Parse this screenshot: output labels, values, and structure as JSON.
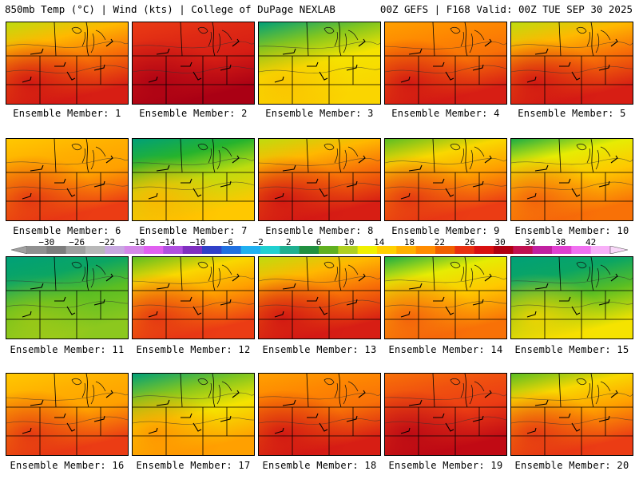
{
  "header": {
    "left": "850mb Temp (°C) | Wind (kts) | College of DuPage NEXLAB",
    "right": "00Z GEFS | F168 Valid: 00Z TUE SEP 30 2025"
  },
  "member_label_prefix": "Ensemble Member: ",
  "members": [
    {
      "number": "1",
      "caption": "Ensemble Member: 1",
      "dominant_temp_c": 22,
      "cool_north": true,
      "hot_southwest": true
    },
    {
      "number": "2",
      "caption": "Ensemble Member: 2",
      "dominant_temp_c": 26,
      "cool_north": false,
      "hot_southwest": true
    },
    {
      "number": "3",
      "caption": "Ensemble Member: 3",
      "dominant_temp_c": 16,
      "cool_north": true,
      "hot_southwest": false
    },
    {
      "number": "4",
      "caption": "Ensemble Member: 4",
      "dominant_temp_c": 22,
      "cool_north": false,
      "hot_southwest": true
    },
    {
      "number": "5",
      "caption": "Ensemble Member: 5",
      "dominant_temp_c": 22,
      "cool_north": true,
      "hot_southwest": true
    },
    {
      "number": "6",
      "caption": "Ensemble Member: 6",
      "dominant_temp_c": 20,
      "cool_north": false,
      "hot_southwest": true
    },
    {
      "number": "7",
      "caption": "Ensemble Member: 7",
      "dominant_temp_c": 14,
      "cool_north": true,
      "hot_southwest": true
    },
    {
      "number": "8",
      "caption": "Ensemble Member: 8",
      "dominant_temp_c": 22,
      "cool_north": true,
      "hot_southwest": true
    },
    {
      "number": "9",
      "caption": "Ensemble Member: 9",
      "dominant_temp_c": 20,
      "cool_north": true,
      "hot_southwest": true
    },
    {
      "number": "10",
      "caption": "Ensemble Member: 10",
      "dominant_temp_c": 18,
      "cool_north": true,
      "hot_southwest": true
    },
    {
      "number": "11",
      "caption": "Ensemble Member: 11",
      "dominant_temp_c": 12,
      "cool_north": true,
      "hot_southwest": false
    },
    {
      "number": "12",
      "caption": "Ensemble Member: 12",
      "dominant_temp_c": 20,
      "cool_north": true,
      "hot_southwest": true
    },
    {
      "number": "13",
      "caption": "Ensemble Member: 13",
      "dominant_temp_c": 22,
      "cool_north": true,
      "hot_southwest": true
    },
    {
      "number": "14",
      "caption": "Ensemble Member: 14",
      "dominant_temp_c": 18,
      "cool_north": true,
      "hot_southwest": true
    },
    {
      "number": "15",
      "caption": "Ensemble Member: 15",
      "dominant_temp_c": 12,
      "cool_north": true,
      "hot_southwest": true
    },
    {
      "number": "16",
      "caption": "Ensemble Member: 16",
      "dominant_temp_c": 20,
      "cool_north": false,
      "hot_southwest": true
    },
    {
      "number": "17",
      "caption": "Ensemble Member: 17",
      "dominant_temp_c": 16,
      "cool_north": true,
      "hot_southwest": true
    },
    {
      "number": "18",
      "caption": "Ensemble Member: 18",
      "dominant_temp_c": 22,
      "cool_north": false,
      "hot_southwest": true
    },
    {
      "number": "19",
      "caption": "Ensemble Member: 19",
      "dominant_temp_c": 24,
      "cool_north": false,
      "hot_southwest": true
    },
    {
      "number": "20",
      "caption": "Ensemble Member: 20",
      "dominant_temp_c": 20,
      "cool_north": true,
      "hot_southwest": true
    }
  ],
  "colorbar": {
    "labels": [
      "−30",
      "−26",
      "−22",
      "−18",
      "−14",
      "−10",
      "−6",
      "−2",
      "2",
      "6",
      "10",
      "14",
      "18",
      "22",
      "26",
      "30",
      "34",
      "38",
      "42"
    ],
    "values": [
      -30,
      -26,
      -22,
      -18,
      -14,
      -10,
      -6,
      -2,
      2,
      6,
      10,
      14,
      18,
      22,
      26,
      30,
      34,
      38,
      42
    ],
    "colors": [
      "#909090",
      "#7d7d7d",
      "#a0a0a0",
      "#b8b8b8",
      "#c8a8e0",
      "#d488e8",
      "#e060f0",
      "#b050e0",
      "#8030c0",
      "#3040c8",
      "#2070e0",
      "#20b0f0",
      "#20d0d0",
      "#20b090",
      "#209040",
      "#60b020",
      "#b0d020",
      "#f0f000",
      "#ffd000",
      "#ffb000",
      "#ff8c00",
      "#f06000",
      "#e83010",
      "#d81010",
      "#b00010",
      "#c01050",
      "#c020a0",
      "#e040d0",
      "#f070f0",
      "#f8b0f8"
    ]
  }
}
